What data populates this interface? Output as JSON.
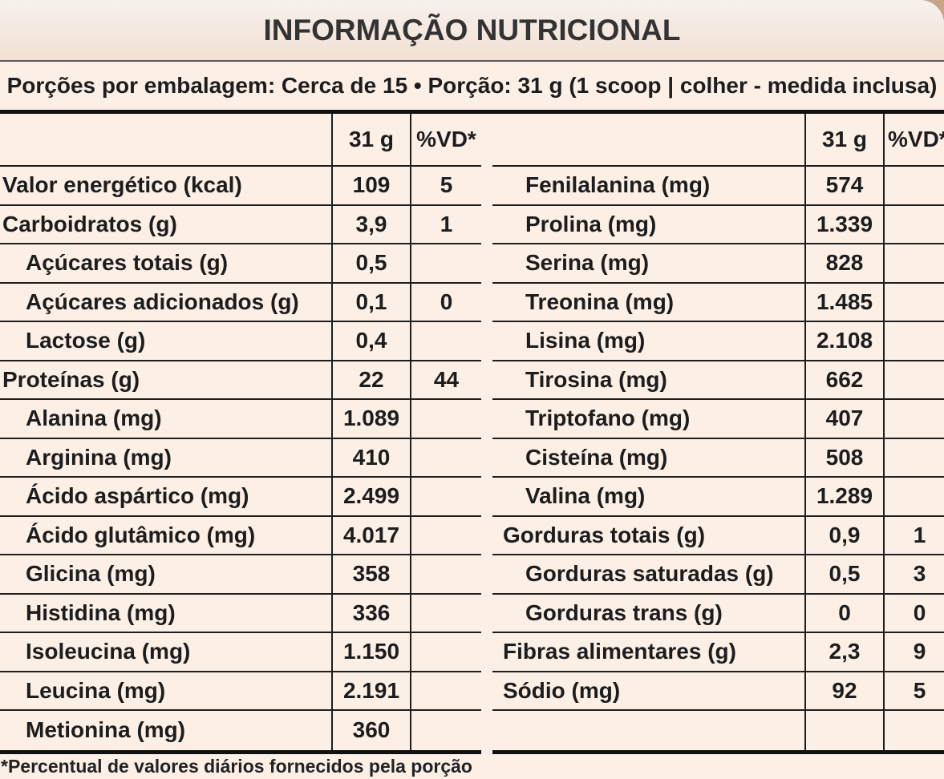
{
  "title": "INFORMAÇÃO NUTRICIONAL",
  "serving_info": "Porções por embalagem: Cerca de 15 • Porção: 31 g (1 scoop | colher - medida inclusa)",
  "columns": {
    "amount": "31 g",
    "dv": "%VD*"
  },
  "left_rows": [
    {
      "name": "Valor energético (kcal)",
      "amount": "109",
      "dv": "5",
      "sub": false
    },
    {
      "name": "Carboidratos (g)",
      "amount": "3,9",
      "dv": "1",
      "sub": false
    },
    {
      "name": "Açúcares totais (g)",
      "amount": "0,5",
      "dv": "",
      "sub": true
    },
    {
      "name": "Açúcares adicionados (g)",
      "amount": "0,1",
      "dv": "0",
      "sub": true
    },
    {
      "name": "Lactose (g)",
      "amount": "0,4",
      "dv": "",
      "sub": true
    },
    {
      "name": "Proteínas (g)",
      "amount": "22",
      "dv": "44",
      "sub": false
    },
    {
      "name": "Alanina (mg)",
      "amount": "1.089",
      "dv": "",
      "sub": true
    },
    {
      "name": "Arginina (mg)",
      "amount": "410",
      "dv": "",
      "sub": true
    },
    {
      "name": "Ácido aspártico (mg)",
      "amount": "2.499",
      "dv": "",
      "sub": true
    },
    {
      "name": "Ácido glutâmico (mg)",
      "amount": "4.017",
      "dv": "",
      "sub": true
    },
    {
      "name": "Glicina (mg)",
      "amount": "358",
      "dv": "",
      "sub": true
    },
    {
      "name": "Histidina (mg)",
      "amount": "336",
      "dv": "",
      "sub": true
    },
    {
      "name": "Isoleucina (mg)",
      "amount": "1.150",
      "dv": "",
      "sub": true
    },
    {
      "name": "Leucina (mg)",
      "amount": "2.191",
      "dv": "",
      "sub": true
    },
    {
      "name": "Metionina (mg)",
      "amount": "360",
      "dv": "",
      "sub": true
    }
  ],
  "right_rows": [
    {
      "name": "Fenilalanina (mg)",
      "amount": "574",
      "dv": "",
      "sub": true
    },
    {
      "name": "Prolina (mg)",
      "amount": "1.339",
      "dv": "",
      "sub": true
    },
    {
      "name": "Serina (mg)",
      "amount": "828",
      "dv": "",
      "sub": true
    },
    {
      "name": "Treonina (mg)",
      "amount": "1.485",
      "dv": "",
      "sub": true
    },
    {
      "name": "Lisina (mg)",
      "amount": "2.108",
      "dv": "",
      "sub": true
    },
    {
      "name": "Tirosina (mg)",
      "amount": "662",
      "dv": "",
      "sub": true
    },
    {
      "name": "Triptofano (mg)",
      "amount": "407",
      "dv": "",
      "sub": true
    },
    {
      "name": "Cisteína (mg)",
      "amount": "508",
      "dv": "",
      "sub": true
    },
    {
      "name": "Valina (mg)",
      "amount": "1.289",
      "dv": "",
      "sub": true
    },
    {
      "name": "Gorduras totais (g)",
      "amount": "0,9",
      "dv": "1",
      "sub": false
    },
    {
      "name": "Gorduras saturadas (g)",
      "amount": "0,5",
      "dv": "3",
      "sub": true
    },
    {
      "name": "Gorduras trans (g)",
      "amount": "0",
      "dv": "0",
      "sub": true
    },
    {
      "name": "Fibras alimentares (g)",
      "amount": "2,3",
      "dv": "9",
      "sub": false
    },
    {
      "name": "Sódio (mg)",
      "amount": "92",
      "dv": "5",
      "sub": false
    }
  ],
  "footnote": "*Percentual de valores diários fornecidos pela porção",
  "colors": {
    "background": "#fcefe6",
    "text": "#1d1d1d",
    "title_text": "#333333",
    "rules": "#111111"
  }
}
